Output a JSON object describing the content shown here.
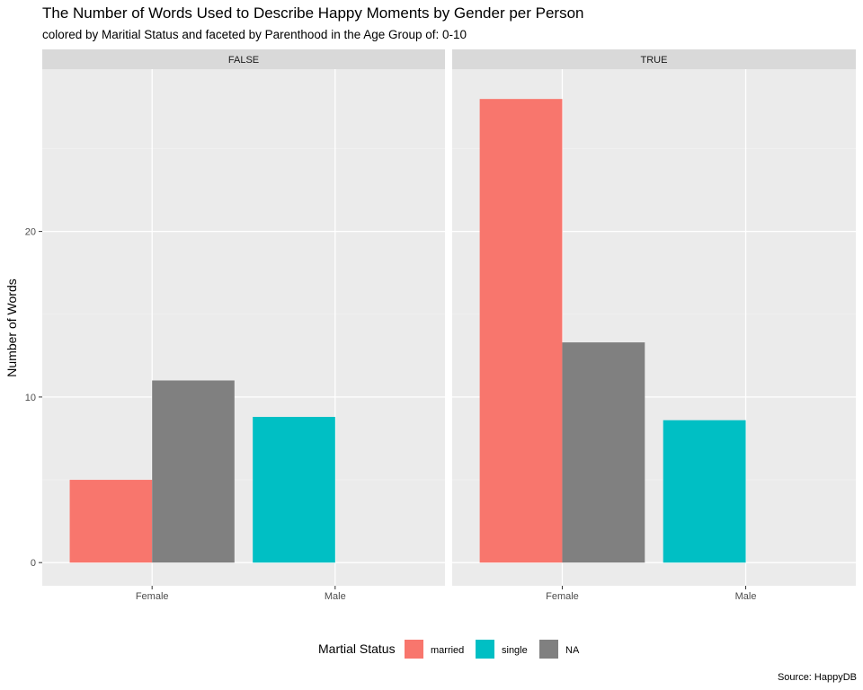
{
  "chart_data": {
    "type": "bar",
    "title": "The Number of Words Used to Describe Happy Moments by Gender per Person",
    "subtitle": "colored by Maritial Status and faceted by Parenthood in the Age Group of: 0-10",
    "ylabel": "Number of Words",
    "xlabel": "",
    "caption": "Source: HappyDB",
    "ylim": [
      -1.4,
      29.8
    ],
    "y_ticks": [
      0,
      10,
      20
    ],
    "y_tick_labels": [
      "0",
      "10",
      "20"
    ],
    "grid": true,
    "legend": {
      "title": "Martial Status",
      "placement": "bottom",
      "entries": [
        {
          "name": "married",
          "color": "#F8766D"
        },
        {
          "name": "single",
          "color": "#00BFC4"
        },
        {
          "name": "NA",
          "color": "#808080"
        }
      ]
    },
    "categories": [
      "Female",
      "Male"
    ],
    "facets": [
      {
        "label": "FALSE",
        "bars": [
          {
            "category": "Female",
            "status": "married",
            "value": 5.0
          },
          {
            "category": "Female",
            "status": "NA",
            "value": 11.0
          },
          {
            "category": "Male",
            "status": "single",
            "value": 8.8
          }
        ]
      },
      {
        "label": "TRUE",
        "bars": [
          {
            "category": "Female",
            "status": "married",
            "value": 28.0
          },
          {
            "category": "Female",
            "status": "NA",
            "value": 13.3
          },
          {
            "category": "Male",
            "status": "single",
            "value": 8.6
          }
        ]
      }
    ]
  }
}
